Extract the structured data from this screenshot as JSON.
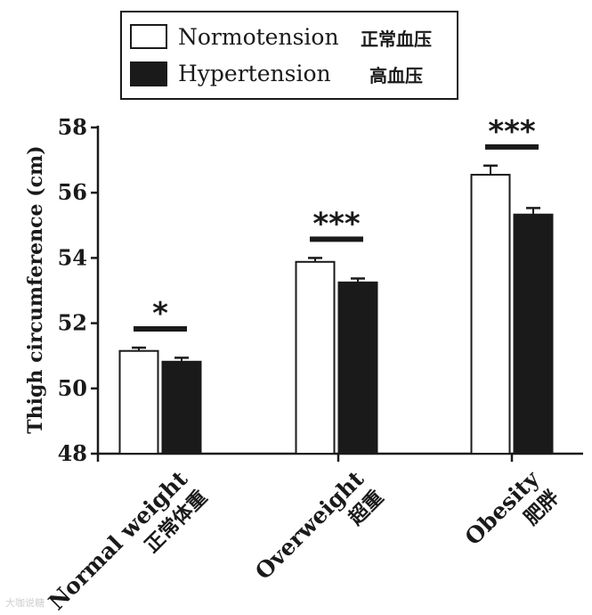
{
  "chart_data": {
    "type": "bar",
    "title": "",
    "ylabel": "Thigh circumference (cm)",
    "xlabel": "",
    "ylim": [
      48,
      58
    ],
    "yticks": [
      48,
      50,
      52,
      54,
      56,
      58
    ],
    "categories": [
      {
        "name": "Normal weight",
        "cn": "正常体重"
      },
      {
        "name": "Overweight",
        "cn": "超重"
      },
      {
        "name": "Obesity",
        "cn": "肥胖"
      }
    ],
    "series": [
      {
        "name": "Normotension",
        "cn": "正常血压",
        "color": "#ffffff",
        "values": [
          51.15,
          53.88,
          56.55
        ],
        "errors": [
          0.1,
          0.12,
          0.28
        ]
      },
      {
        "name": "Hypertension",
        "cn": "高血压",
        "color": "#1a1a1a",
        "values": [
          50.82,
          53.25,
          55.33
        ],
        "errors": [
          0.12,
          0.12,
          0.2
        ]
      }
    ],
    "significance": [
      "*",
      "***",
      "***"
    ],
    "legend": "top-left",
    "grid": false
  },
  "watermark": "大咖说糖"
}
